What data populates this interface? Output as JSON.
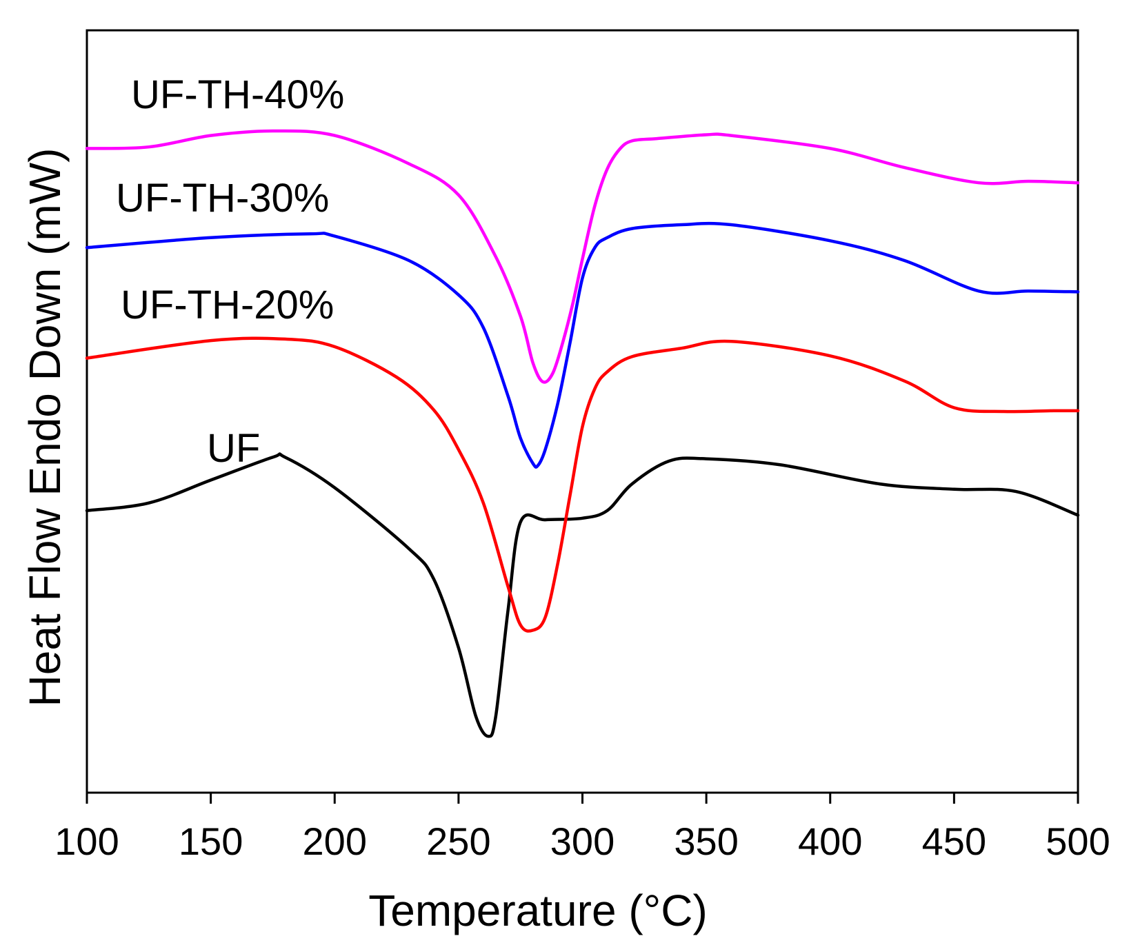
{
  "chart_data": {
    "type": "line",
    "title": "",
    "xlabel": "Temperature  (°C)",
    "ylabel": "Heat Flow Endo Down (mW)",
    "xlim": [
      100,
      500
    ],
    "ylim": [
      0,
      100
    ],
    "y_ticks_shown": false,
    "x_ticks": [
      100,
      150,
      200,
      250,
      300,
      350,
      400,
      450,
      500
    ],
    "x_tick_labels": [
      "100",
      "150",
      "200",
      "250",
      "300",
      "350",
      "400",
      "450",
      "500"
    ],
    "legend": "none (series labeled directly on plot)",
    "series": [
      {
        "name": "UF",
        "color": "#000000",
        "x": [
          100,
          125,
          150,
          175,
          180,
          200,
          230,
          240,
          250,
          257,
          262,
          265,
          270,
          275,
          285,
          300,
          310,
          320,
          335,
          350,
          380,
          420,
          450,
          475,
          500
        ],
        "y": [
          37,
          38,
          41,
          44,
          44,
          40,
          32,
          28,
          19,
          10,
          7.4,
          10,
          24,
          35.5,
          35.8,
          36,
          37,
          40.5,
          43.5,
          43.8,
          43,
          40.5,
          39.8,
          39.5,
          36.4
        ]
      },
      {
        "name": "UF-TH-20%",
        "color": "#ff0000",
        "x": [
          100,
          150,
          180,
          200,
          225,
          240,
          250,
          260,
          270,
          275,
          280,
          285,
          290,
          295,
          300,
          305,
          310,
          320,
          340,
          360,
          400,
          430,
          450,
          470,
          490,
          500
        ],
        "y": [
          57,
          59.3,
          59.5,
          58.5,
          54.5,
          50.2,
          45,
          38,
          27,
          22,
          21.3,
          23,
          30,
          39,
          48,
          53,
          55.2,
          57.2,
          58.3,
          59.2,
          57.3,
          54,
          50.5,
          50,
          50.1,
          50.1
        ]
      },
      {
        "name": "UF-TH-30%",
        "color": "#0000ff",
        "x": [
          100,
          150,
          190,
          200,
          230,
          250,
          260,
          270,
          275,
          280,
          282,
          285,
          290,
          295,
          300,
          305,
          310,
          320,
          340,
          360,
          400,
          430,
          460,
          480,
          500
        ],
        "y": [
          71.5,
          72.8,
          73.3,
          73,
          69.8,
          65.3,
          61,
          52,
          46.5,
          43.2,
          42.9,
          45,
          51,
          59,
          67.5,
          71.5,
          72.8,
          74,
          74.5,
          74.5,
          72.4,
          69.8,
          65.8,
          65.8,
          65.7
        ]
      },
      {
        "name": "UF-TH-40%",
        "color": "#ff00ff",
        "x": [
          100,
          125,
          150,
          175,
          200,
          230,
          250,
          265,
          275,
          280,
          284,
          288,
          292,
          296,
          300,
          305,
          310,
          315,
          320,
          330,
          350,
          360,
          400,
          430,
          460,
          480,
          500
        ],
        "y": [
          84.5,
          84.7,
          86.2,
          86.8,
          86.2,
          82.5,
          78.4,
          70.3,
          62.5,
          56.4,
          53.9,
          55,
          59,
          64,
          70,
          77,
          81.8,
          84.4,
          85.5,
          85.8,
          86.3,
          86.2,
          84.5,
          82,
          80,
          80.2,
          80
        ]
      }
    ],
    "annotations": [
      {
        "text": "UF-TH-40%",
        "series": "UF-TH-40%"
      },
      {
        "text": "UF-TH-30%",
        "series": "UF-TH-30%"
      },
      {
        "text": "UF-TH-20%",
        "series": "UF-TH-20%"
      },
      {
        "text": "UF",
        "series": "UF"
      }
    ]
  }
}
